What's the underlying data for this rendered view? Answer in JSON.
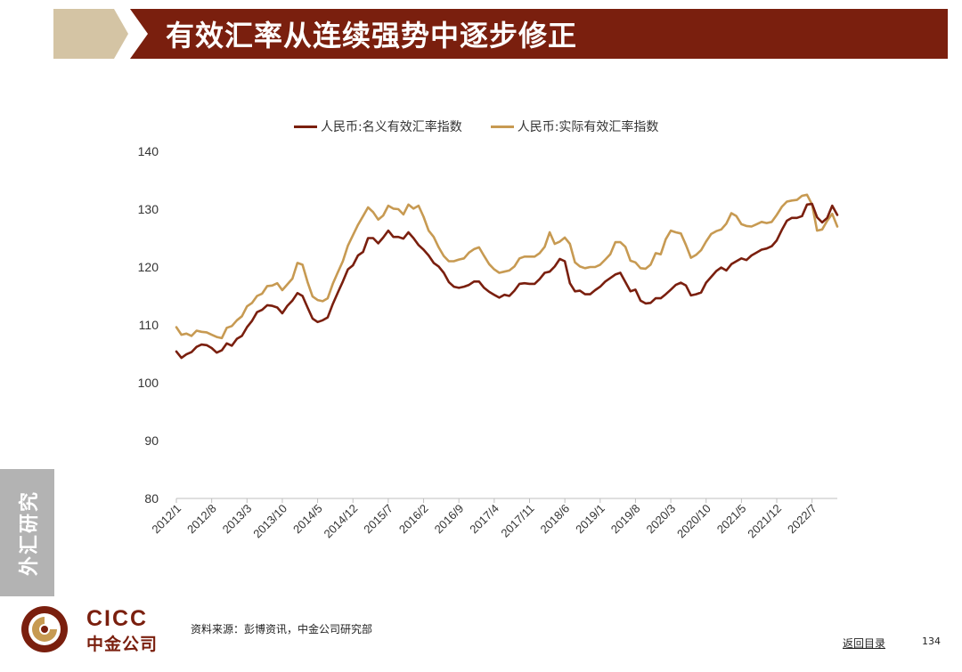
{
  "header": {
    "title": "有效汇率从连续强势中逐步修正"
  },
  "chart_data": {
    "type": "line",
    "title": "",
    "xlabel": "",
    "ylabel": "",
    "ylim": [
      80,
      140
    ],
    "yticks": [
      80,
      90,
      100,
      110,
      120,
      130,
      140
    ],
    "grid": false,
    "legend_position": "top",
    "x_labels": [
      "2012/1",
      "2012/8",
      "2013/3",
      "2013/10",
      "2014/5",
      "2014/12",
      "2015/7",
      "2016/2",
      "2016/9",
      "2017/4",
      "2017/11",
      "2018/6",
      "2019/1",
      "2019/8",
      "2020/3",
      "2020/10",
      "2021/5",
      "2021/12",
      "2022/7"
    ],
    "series": [
      {
        "name": "人民币:名义有效汇率指数",
        "color": "#7a1f0e",
        "values": [
          105.4,
          104.3,
          104.9,
          105.3,
          106.2,
          106.6,
          106.5,
          106.0,
          105.2,
          105.6,
          106.8,
          106.4,
          107.6,
          108.1,
          109.6,
          110.7,
          112.2,
          112.6,
          113.4,
          113.3,
          113.0,
          112.0,
          113.3,
          114.2,
          115.5,
          115.0,
          113.0,
          111.1,
          110.5,
          110.8,
          111.3,
          113.6,
          115.6,
          117.5,
          119.6,
          120.3,
          122.0,
          122.6,
          125.0,
          125.0,
          124.1,
          125.1,
          126.3,
          125.2,
          125.2,
          124.9,
          126.0,
          125.0,
          123.8,
          123.0,
          122.0,
          120.7,
          120.1,
          119.0,
          117.4,
          116.6,
          116.4,
          116.6,
          116.9,
          117.5,
          117.5,
          116.4,
          115.7,
          115.2,
          114.7,
          115.2,
          115.0,
          115.9,
          117.1,
          117.2,
          117.1,
          117.1,
          117.9,
          119.0,
          119.2,
          120.1,
          121.4,
          121.0,
          117.2,
          115.8,
          115.9,
          115.3,
          115.3,
          116.0,
          116.6,
          117.5,
          118.1,
          118.7,
          119.0,
          117.4,
          115.8,
          116.1,
          114.2,
          113.7,
          113.8,
          114.6,
          114.6,
          115.3,
          116.1,
          116.9,
          117.3,
          116.8,
          115.1,
          115.3,
          115.6,
          117.3,
          118.3,
          119.3,
          119.9,
          119.4,
          120.5,
          121.0,
          121.5,
          121.2,
          122.0,
          122.5,
          123.0,
          123.2,
          123.6,
          124.6,
          126.4,
          128.0,
          128.5,
          128.5,
          128.8,
          130.8,
          130.9,
          128.6,
          127.7,
          128.5,
          130.6,
          129.0
        ]
      },
      {
        "name": "人民币:实际有效汇率指数",
        "color": "#c79a52",
        "values": [
          109.6,
          108.3,
          108.5,
          108.1,
          109.0,
          108.8,
          108.7,
          108.3,
          107.9,
          107.7,
          109.5,
          109.8,
          110.8,
          111.5,
          113.2,
          113.8,
          115.0,
          115.4,
          116.7,
          116.8,
          117.2,
          116.0,
          117.0,
          118.0,
          120.7,
          120.4,
          117.4,
          114.9,
          114.3,
          114.1,
          114.6,
          117.1,
          119.1,
          121.0,
          123.7,
          125.5,
          127.3,
          128.8,
          130.3,
          129.5,
          128.2,
          128.9,
          130.6,
          130.1,
          130.0,
          129.1,
          130.8,
          130.1,
          130.6,
          128.7,
          126.3,
          125.2,
          123.4,
          121.9,
          121.0,
          121.0,
          121.3,
          121.5,
          122.5,
          123.1,
          123.4,
          121.9,
          120.5,
          119.6,
          119.0,
          119.2,
          119.4,
          120.1,
          121.5,
          121.8,
          121.8,
          121.8,
          122.4,
          123.5,
          126.0,
          124.0,
          124.4,
          125.1,
          124.0,
          120.8,
          120.1,
          119.8,
          120.0,
          120.0,
          120.4,
          121.3,
          122.2,
          124.3,
          124.3,
          123.5,
          121.1,
          120.8,
          119.8,
          119.7,
          120.4,
          122.4,
          122.2,
          124.8,
          126.3,
          126.0,
          125.8,
          123.8,
          121.6,
          122.1,
          122.9,
          124.4,
          125.7,
          126.2,
          126.5,
          127.5,
          129.3,
          128.8,
          127.4,
          127.1,
          127.0,
          127.4,
          127.8,
          127.6,
          127.8,
          129.0,
          130.4,
          131.3,
          131.5,
          131.6,
          132.3,
          132.5,
          130.8,
          126.3,
          126.5,
          128.0,
          129.2,
          127.0
        ]
      }
    ]
  },
  "sidebar": {
    "tab_label": "外汇研究"
  },
  "footer": {
    "logo_en": "CICC",
    "logo_cn": "中金公司",
    "source": "资料来源：彭博资讯，中金公司研究部",
    "back_link": "返回目录",
    "page_number": "134"
  }
}
